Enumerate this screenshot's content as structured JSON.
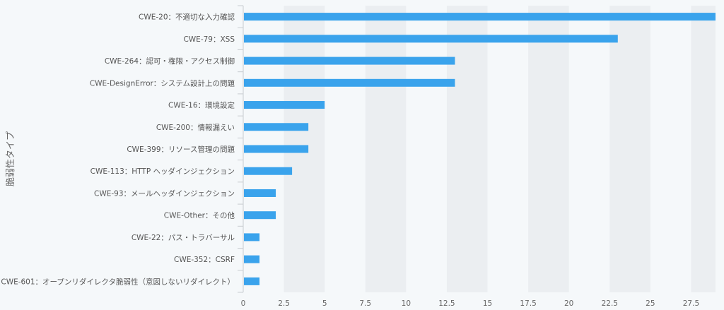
{
  "chart_data": {
    "type": "bar",
    "orientation": "horizontal",
    "categories": [
      "CWE-20：不適切な入力確認",
      "CWE-79：XSS",
      "CWE-264：認可・権限・アクセス制御",
      "CWE-DesignError：システム設計上の問題",
      "CWE-16：環境設定",
      "CWE-200：情報漏えい",
      "CWE-399：リソース管理の問題",
      "CWE-113：HTTP ヘッダインジェクション",
      "CWE-93：メールヘッダインジェクション",
      "CWE-Other：その他",
      "CWE-22：パス・トラバーサル",
      "CWE-352：CSRF",
      "CWE-601：オープンリダイレクタ脆弱性（意図しないリダイレクト）"
    ],
    "values": [
      29,
      23,
      13,
      13,
      5,
      4,
      4,
      3,
      2,
      2,
      1,
      1,
      1
    ],
    "ylabel": "脆弱性タイプ",
    "xlabel": "",
    "xlim": [
      0,
      29
    ],
    "x_ticks": [
      0,
      2.5,
      5,
      7.5,
      10,
      12.5,
      15,
      17.5,
      20,
      22.5,
      25,
      27.5
    ],
    "x_tick_labels": [
      "0",
      "2.5",
      "5",
      "7.5",
      "10",
      "12.5",
      "15",
      "17.5",
      "20",
      "22.5",
      "25",
      "27.5"
    ],
    "grid": "alternating-bands",
    "colors": {
      "bar": "#3aa3ec",
      "band": "#ebeef1",
      "axis": "#c8ccd0"
    }
  }
}
